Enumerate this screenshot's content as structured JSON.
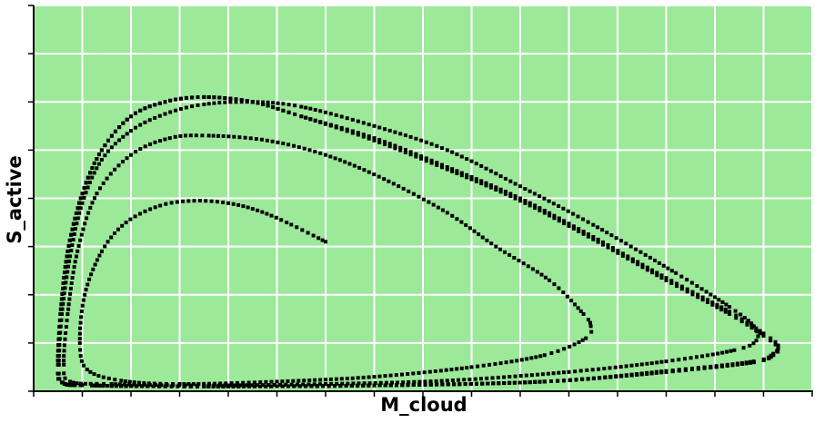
{
  "chart_data": {
    "type": "scatter",
    "title": "",
    "xlabel": "M_cloud",
    "ylabel": "S_active",
    "xlim": [
      0,
      16
    ],
    "ylim": [
      0,
      8
    ],
    "x_ticks": [
      0,
      1,
      2,
      3,
      4,
      5,
      6,
      7,
      8,
      9,
      10,
      11,
      12,
      13,
      14,
      15,
      16
    ],
    "y_ticks": [
      0,
      1,
      2,
      3,
      4,
      5,
      6,
      7,
      8
    ],
    "tick_labels_shown": false,
    "grid": true,
    "legend": "none",
    "colors": {
      "background": "#9de99a",
      "grid": "#ffffff",
      "marker": "#000000"
    },
    "series": [
      {
        "style": "dense-dots",
        "points": [
          [
            6.0,
            3.1
          ],
          [
            5.2,
            3.5
          ],
          [
            4.6,
            3.75
          ],
          [
            4.0,
            3.9
          ],
          [
            3.3,
            3.95
          ],
          [
            2.6,
            3.85
          ],
          [
            1.9,
            3.5
          ],
          [
            1.4,
            2.9
          ],
          [
            1.05,
            2.0
          ],
          [
            0.95,
            1.0
          ],
          [
            1.1,
            0.45
          ],
          [
            1.8,
            0.22
          ],
          [
            3.0,
            0.15
          ],
          [
            5.0,
            0.2
          ],
          [
            7.0,
            0.3
          ],
          [
            9.0,
            0.5
          ],
          [
            10.5,
            0.75
          ],
          [
            11.35,
            1.1
          ],
          [
            11.45,
            1.35
          ],
          [
            11.3,
            1.6
          ],
          [
            10.6,
            2.3
          ],
          [
            9.5,
            3.0
          ],
          [
            8.5,
            3.7
          ],
          [
            7.2,
            4.4
          ],
          [
            6.0,
            4.9
          ],
          [
            4.8,
            5.2
          ],
          [
            3.6,
            5.3
          ],
          [
            2.8,
            5.25
          ],
          [
            2.0,
            4.9
          ],
          [
            1.3,
            4.1
          ],
          [
            0.9,
            2.9
          ],
          [
            0.7,
            1.6
          ],
          [
            0.62,
            0.55
          ],
          [
            0.75,
            0.2
          ],
          [
            1.6,
            0.15
          ],
          [
            3.5,
            0.12
          ],
          [
            6.0,
            0.15
          ],
          [
            8.5,
            0.22
          ],
          [
            11.0,
            0.4
          ],
          [
            13.0,
            0.62
          ],
          [
            14.4,
            0.85
          ],
          [
            14.85,
            1.05
          ],
          [
            14.8,
            1.35
          ],
          [
            14.3,
            1.75
          ],
          [
            13.2,
            2.45
          ],
          [
            11.5,
            3.45
          ],
          [
            10.0,
            4.25
          ],
          [
            8.5,
            5.0
          ],
          [
            7.0,
            5.5
          ],
          [
            5.5,
            5.9
          ],
          [
            4.5,
            6.0
          ],
          [
            3.5,
            5.95
          ],
          [
            2.7,
            5.75
          ],
          [
            2.0,
            5.4
          ],
          [
            1.4,
            4.8
          ],
          [
            1.0,
            3.9
          ],
          [
            0.75,
            2.8
          ],
          [
            0.58,
            1.6
          ],
          [
            0.52,
            0.55
          ],
          [
            0.6,
            0.18
          ],
          [
            1.2,
            0.12
          ],
          [
            3.5,
            0.1
          ],
          [
            7.0,
            0.12
          ],
          [
            10.5,
            0.2
          ],
          [
            13.0,
            0.42
          ],
          [
            14.8,
            0.62
          ],
          [
            15.2,
            0.78
          ],
          [
            15.3,
            0.95
          ],
          [
            15.0,
            1.2
          ],
          [
            14.3,
            1.65
          ],
          [
            13.0,
            2.35
          ],
          [
            11.5,
            3.2
          ],
          [
            10.0,
            4.0
          ],
          [
            8.5,
            4.65
          ],
          [
            7.0,
            5.25
          ],
          [
            5.5,
            5.7
          ],
          [
            4.5,
            6.0
          ],
          [
            3.5,
            6.1
          ],
          [
            2.7,
            6.0
          ],
          [
            2.0,
            5.7
          ],
          [
            1.4,
            5.0
          ],
          [
            1.0,
            4.1
          ],
          [
            0.7,
            2.9
          ],
          [
            0.55,
            1.6
          ],
          [
            0.5,
            0.55
          ],
          [
            0.58,
            0.18
          ],
          [
            1.2,
            0.12
          ],
          [
            3.5,
            0.1
          ],
          [
            7.0,
            0.12
          ],
          [
            10.5,
            0.2
          ],
          [
            13.0,
            0.4
          ],
          [
            14.8,
            0.6
          ],
          [
            15.2,
            0.75
          ],
          [
            15.3,
            0.9
          ],
          [
            15.0,
            1.15
          ],
          [
            14.3,
            1.6
          ],
          [
            13.0,
            2.3
          ],
          [
            11.5,
            3.15
          ],
          [
            10.0,
            3.95
          ],
          [
            8.5,
            4.6
          ],
          [
            7.0,
            5.2
          ],
          [
            5.5,
            5.7
          ],
          [
            4.5,
            6.0
          ],
          [
            3.5,
            6.1
          ],
          [
            2.7,
            6.0
          ],
          [
            2.0,
            5.7
          ],
          [
            1.4,
            5.0
          ],
          [
            1.0,
            4.1
          ],
          [
            0.7,
            2.9
          ],
          [
            0.55,
            1.6
          ],
          [
            0.5,
            0.55
          ],
          [
            0.58,
            0.18
          ],
          [
            1.2,
            0.12
          ],
          [
            3.5,
            0.1
          ],
          [
            7.0,
            0.12
          ],
          [
            10.5,
            0.2
          ],
          [
            13.0,
            0.4
          ],
          [
            14.8,
            0.6
          ],
          [
            15.2,
            0.75
          ],
          [
            15.3,
            0.9
          ]
        ]
      }
    ]
  }
}
